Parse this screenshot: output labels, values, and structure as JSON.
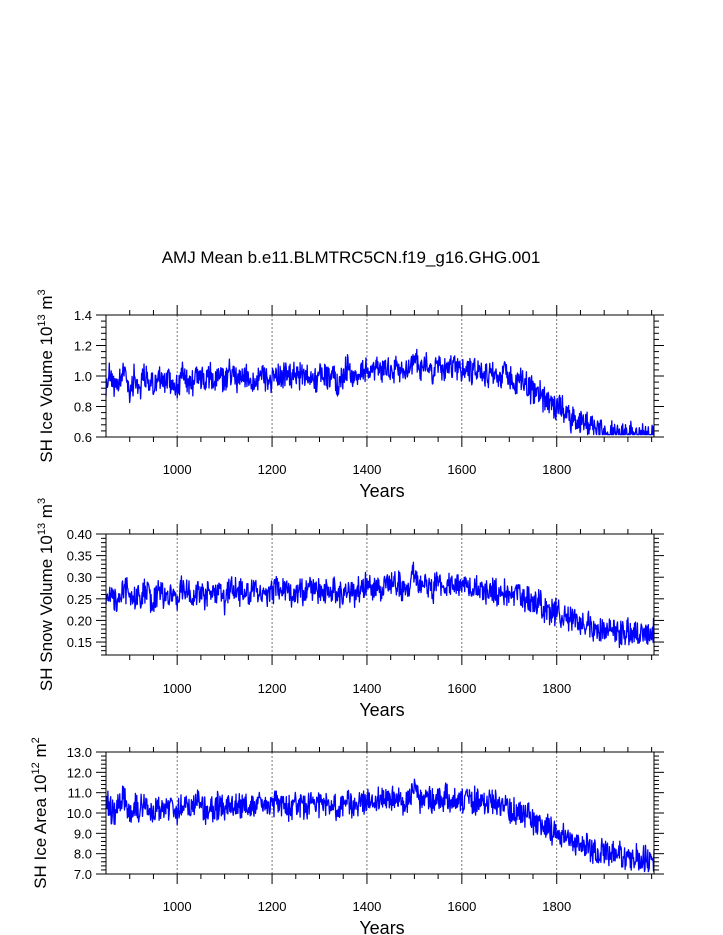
{
  "figure_title": "AMJ Mean b.e11.BLMTRC5CN.f19_g16.GHG.001",
  "series_color": "#0000ff",
  "chart_data": [
    {
      "type": "line",
      "title": "AMJ Mean b.e11.BLMTRC5CN.f19_g16.GHG.001",
      "xlabel": "Years",
      "ylabel": {
        "base": "SH Ice Volume 10",
        "exp": "13",
        "unit": " m",
        "unit_exp": "3"
      },
      "xlim": [
        850,
        2005
      ],
      "ylim": [
        0.6,
        1.4
      ],
      "xticks": [
        1000,
        1200,
        1400,
        1600,
        1800
      ],
      "xtick_labels": [
        "1000",
        "1200",
        "1400",
        "1600",
        "1800"
      ],
      "yticks": [
        0.6,
        0.8,
        1.0,
        1.2,
        1.4
      ],
      "ytick_labels": [
        "0.6",
        "0.8",
        "1.0",
        "1.2",
        "1.4"
      ],
      "grid": "dashed vertical at major x ticks",
      "series": {
        "name": "SH ice volume",
        "x_start": 850,
        "x_step": 10,
        "values": [
          0.95,
          1.03,
          0.88,
          0.97,
          1.04,
          0.9,
          0.99,
          0.93,
          1.0,
          0.96,
          0.92,
          1.01,
          0.94,
          0.98,
          0.96,
          0.93,
          1.0,
          0.97,
          0.95,
          1.02,
          0.98,
          0.96,
          0.99,
          0.97,
          1.01,
          0.95,
          1.03,
          0.99,
          0.97,
          1.0,
          0.98,
          0.96,
          1.0,
          1.02,
          0.97,
          0.99,
          1.01,
          0.98,
          1.0,
          0.98,
          1.02,
          1.0,
          0.99,
          1.03,
          0.97,
          1.0,
          1.02,
          0.99,
          1.01,
          0.94,
          1.02,
          1.06,
          0.98,
          1.01,
          1.04,
          1.03,
          0.99,
          1.05,
          1.02,
          1.07,
          1.03,
          1.06,
          1.04,
          1.01,
          1.09,
          1.12,
          1.03,
          1.07,
          1.05,
          1.02,
          1.06,
          1.04,
          1.07,
          1.03,
          1.05,
          1.03,
          1.06,
          1.02,
          1.04,
          1.05,
          1.02,
          1.0,
          1.02,
          0.99,
          1.01,
          0.98,
          0.96,
          0.97,
          0.94,
          0.92,
          0.91,
          0.88,
          0.86,
          0.85,
          0.82,
          0.8,
          0.78,
          0.77,
          0.72,
          0.7,
          0.7,
          0.68,
          0.66,
          0.65,
          0.64,
          0.63,
          0.62,
          0.62,
          0.61,
          0.6,
          0.6,
          0.6,
          0.6,
          0.6,
          0.6,
          0.6
        ]
      }
    },
    {
      "type": "line",
      "xlabel": "Years",
      "ylabel": {
        "base": "SH Snow Volume 10",
        "exp": "13",
        "unit": " m",
        "unit_exp": "3"
      },
      "xlim": [
        850,
        2005
      ],
      "ylim": [
        0.12,
        0.4
      ],
      "xticks": [
        1000,
        1200,
        1400,
        1600,
        1800
      ],
      "xtick_labels": [
        "1000",
        "1200",
        "1400",
        "1600",
        "1800"
      ],
      "yticks": [
        0.15,
        0.2,
        0.25,
        0.3,
        0.35,
        0.4
      ],
      "ytick_labels": [
        "0.15",
        "0.20",
        "0.25",
        "0.30",
        "0.35",
        "0.40"
      ],
      "grid": "dashed vertical at major x ticks",
      "series": {
        "name": "SH snow volume",
        "x_start": 850,
        "x_step": 10,
        "values": [
          0.26,
          0.27,
          0.24,
          0.26,
          0.28,
          0.25,
          0.26,
          0.25,
          0.27,
          0.26,
          0.24,
          0.27,
          0.25,
          0.26,
          0.26,
          0.25,
          0.27,
          0.26,
          0.25,
          0.27,
          0.26,
          0.25,
          0.27,
          0.26,
          0.27,
          0.25,
          0.28,
          0.27,
          0.26,
          0.27,
          0.26,
          0.26,
          0.27,
          0.27,
          0.26,
          0.27,
          0.27,
          0.26,
          0.27,
          0.26,
          0.27,
          0.27,
          0.26,
          0.28,
          0.26,
          0.27,
          0.27,
          0.27,
          0.27,
          0.25,
          0.27,
          0.28,
          0.26,
          0.27,
          0.28,
          0.28,
          0.27,
          0.28,
          0.27,
          0.29,
          0.28,
          0.29,
          0.28,
          0.27,
          0.29,
          0.31,
          0.28,
          0.29,
          0.28,
          0.27,
          0.29,
          0.28,
          0.29,
          0.28,
          0.28,
          0.28,
          0.29,
          0.27,
          0.28,
          0.28,
          0.27,
          0.27,
          0.27,
          0.26,
          0.27,
          0.26,
          0.26,
          0.26,
          0.25,
          0.25,
          0.24,
          0.24,
          0.23,
          0.23,
          0.22,
          0.22,
          0.21,
          0.21,
          0.2,
          0.2,
          0.19,
          0.19,
          0.19,
          0.18,
          0.18,
          0.18,
          0.18,
          0.18,
          0.17,
          0.17,
          0.17,
          0.17,
          0.17,
          0.17,
          0.17,
          0.17
        ]
      }
    },
    {
      "type": "line",
      "xlabel": "Years",
      "ylabel": {
        "base": "SH Ice Area 10",
        "exp": "12",
        "unit": " m",
        "unit_exp": "2"
      },
      "xlim": [
        850,
        2005
      ],
      "ylim": [
        7.0,
        13.0
      ],
      "xticks": [
        1000,
        1200,
        1400,
        1600,
        1800
      ],
      "xtick_labels": [
        "1000",
        "1200",
        "1400",
        "1600",
        "1800"
      ],
      "yticks": [
        7.0,
        8.0,
        9.0,
        10.0,
        11.0,
        12.0,
        13.0
      ],
      "ytick_labels": [
        "7.0",
        "8.0",
        "9.0",
        "10.0",
        "11.0",
        "12.0",
        "13.0"
      ],
      "grid": "dashed vertical at major x ticks",
      "series": {
        "name": "SH ice area",
        "x_start": 850,
        "x_step": 10,
        "values": [
          10.6,
          10.2,
          9.9,
          10.4,
          10.7,
          10.1,
          10.3,
          10.0,
          10.5,
          10.2,
          9.8,
          10.4,
          10.1,
          10.3,
          10.2,
          10.0,
          10.5,
          10.2,
          10.1,
          10.5,
          10.3,
          10.1,
          10.4,
          10.2,
          10.5,
          10.0,
          10.6,
          10.4,
          10.2,
          10.4,
          10.3,
          10.2,
          10.4,
          10.5,
          10.2,
          10.4,
          10.5,
          10.3,
          10.4,
          10.3,
          10.5,
          10.4,
          10.3,
          10.6,
          10.2,
          10.4,
          10.5,
          10.4,
          10.5,
          10.0,
          10.5,
          10.7,
          10.3,
          10.5,
          10.6,
          10.6,
          10.4,
          10.7,
          10.5,
          10.8,
          10.6,
          10.8,
          10.6,
          10.5,
          10.9,
          11.1,
          10.6,
          10.8,
          10.7,
          10.5,
          10.8,
          10.6,
          10.8,
          10.6,
          10.7,
          10.6,
          10.8,
          10.5,
          10.6,
          10.7,
          10.5,
          10.4,
          10.5,
          10.3,
          10.4,
          10.2,
          10.1,
          10.1,
          9.9,
          9.8,
          9.7,
          9.5,
          9.4,
          9.3,
          9.1,
          9.0,
          8.9,
          8.8,
          8.6,
          8.5,
          8.4,
          8.3,
          8.2,
          8.1,
          8.1,
          8.0,
          8.0,
          7.9,
          7.9,
          7.9,
          7.8,
          7.8,
          7.8,
          7.8,
          7.8,
          7.8
        ]
      }
    }
  ]
}
